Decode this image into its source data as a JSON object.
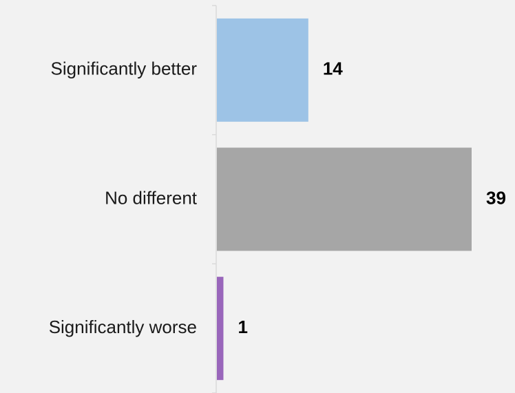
{
  "chart_data": {
    "type": "bar",
    "orientation": "horizontal",
    "categories": [
      "Significantly better",
      "No different",
      "Significantly worse"
    ],
    "values": [
      14,
      39,
      1
    ],
    "data_labels": [
      "14",
      "39",
      "1"
    ],
    "colors": [
      "#9dc3e6",
      "#a6a6a6",
      "#9966bb"
    ],
    "xlim": [
      0,
      39
    ],
    "grid": false,
    "legend": "none",
    "background": "#f2f2f2",
    "axis_color": "#d9d9d9"
  }
}
